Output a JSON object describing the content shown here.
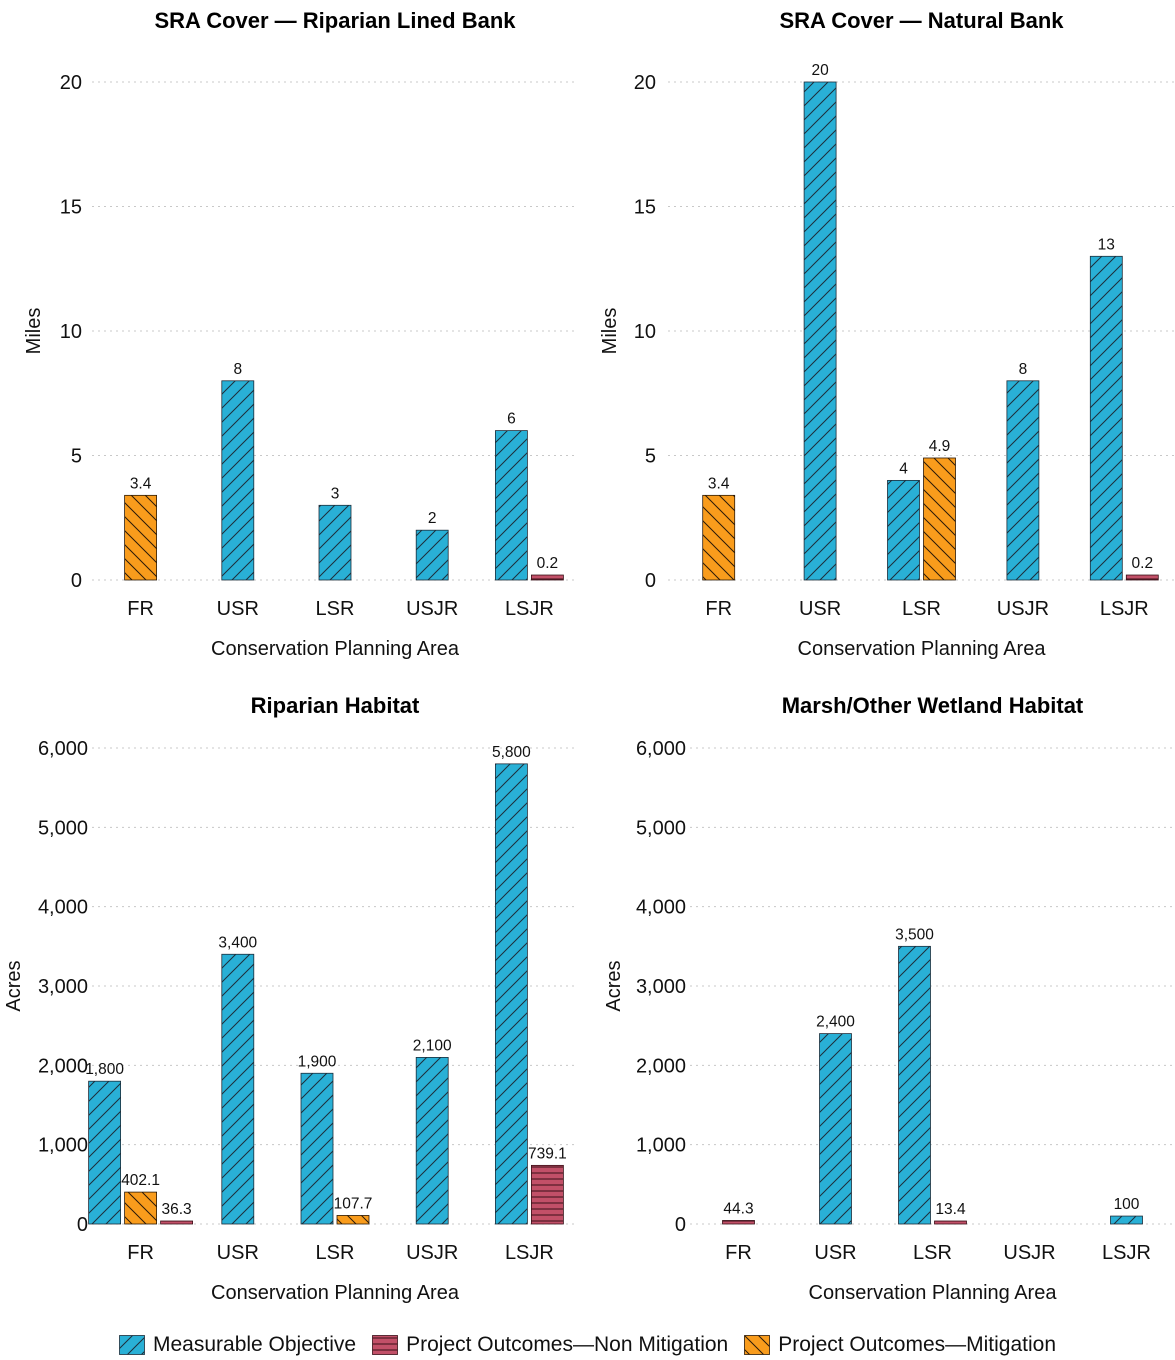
{
  "legend": {
    "objective": "Measurable Objective",
    "non_mitigation": "Project Outcomes—Non Mitigation",
    "mitigation": "Project Outcomes—Mitigation"
  },
  "colors": {
    "objective": "#29b0d6",
    "non_mitigation": "#c25068",
    "mitigation": "#f99c1c",
    "grid": "#c8c8c8"
  },
  "chart_data": [
    {
      "type": "bar",
      "title": "SRA Cover — Riparian Lined Bank",
      "xlabel": "Conservation Planning Area",
      "ylabel": "Miles",
      "ylim": [
        0,
        20
      ],
      "yticks": [
        0,
        5,
        10,
        15,
        20
      ],
      "ytick_labels": [
        "0",
        "5",
        "10",
        "15",
        "20"
      ],
      "categories": [
        "FR",
        "USR",
        "LSR",
        "USJR",
        "LSJR"
      ],
      "series": [
        {
          "name": "Measurable Objective",
          "values": [
            null,
            8,
            3,
            2,
            6
          ],
          "labels": [
            null,
            "8",
            "3",
            "2",
            "6"
          ]
        },
        {
          "name": "Project Outcomes—Mitigation",
          "values": [
            3.4,
            null,
            null,
            null,
            null
          ],
          "labels": [
            "3.4",
            null,
            null,
            null,
            null
          ]
        },
        {
          "name": "Project Outcomes—Non Mitigation",
          "values": [
            null,
            null,
            null,
            null,
            0.2
          ],
          "labels": [
            null,
            null,
            null,
            null,
            "0.2"
          ]
        }
      ]
    },
    {
      "type": "bar",
      "title": "SRA Cover — Natural Bank",
      "xlabel": "Conservation Planning Area",
      "ylabel": "Miles",
      "ylim": [
        0,
        20
      ],
      "yticks": [
        0,
        5,
        10,
        15,
        20
      ],
      "ytick_labels": [
        "0",
        "5",
        "10",
        "15",
        "20"
      ],
      "categories": [
        "FR",
        "USR",
        "LSR",
        "USJR",
        "LSJR"
      ],
      "series": [
        {
          "name": "Measurable Objective",
          "values": [
            null,
            20,
            4,
            8,
            13
          ],
          "labels": [
            null,
            "20",
            "4",
            "8",
            "13"
          ]
        },
        {
          "name": "Project Outcomes—Mitigation",
          "values": [
            3.4,
            null,
            4.9,
            null,
            null
          ],
          "labels": [
            "3.4",
            null,
            "4.9",
            null,
            null
          ]
        },
        {
          "name": "Project Outcomes—Non Mitigation",
          "values": [
            null,
            null,
            null,
            null,
            0.2
          ],
          "labels": [
            null,
            null,
            null,
            null,
            "0.2"
          ]
        }
      ]
    },
    {
      "type": "bar",
      "title": "Riparian Habitat",
      "xlabel": "Conservation Planning Area",
      "ylabel": "Acres",
      "ylim": [
        0,
        6000
      ],
      "yticks": [
        0,
        1000,
        2000,
        3000,
        4000,
        5000,
        6000
      ],
      "ytick_labels": [
        "0",
        "1,000",
        "2,000",
        "3,000",
        "4,000",
        "5,000",
        "6,000"
      ],
      "categories": [
        "FR",
        "USR",
        "LSR",
        "USJR",
        "LSJR"
      ],
      "series": [
        {
          "name": "Measurable Objective",
          "values": [
            1800,
            3400,
            1900,
            2100,
            5800
          ],
          "labels": [
            "1,800",
            "3,400",
            "1,900",
            "2,100",
            "5,800"
          ]
        },
        {
          "name": "Project Outcomes—Mitigation",
          "values": [
            402.1,
            null,
            107.7,
            null,
            null
          ],
          "labels": [
            "402.1",
            null,
            "107.7",
            null,
            null
          ]
        },
        {
          "name": "Project Outcomes—Non Mitigation",
          "values": [
            36.3,
            null,
            null,
            null,
            739.1
          ],
          "labels": [
            "36.3",
            null,
            null,
            null,
            "739.1"
          ]
        }
      ]
    },
    {
      "type": "bar",
      "title": "Marsh/Other Wetland Habitat",
      "xlabel": "Conservation Planning Area",
      "ylabel": "Acres",
      "ylim": [
        0,
        6000
      ],
      "yticks": [
        0,
        1000,
        2000,
        3000,
        4000,
        5000,
        6000
      ],
      "ytick_labels": [
        "0",
        "1,000",
        "2,000",
        "3,000",
        "4,000",
        "5,000",
        "6,000"
      ],
      "categories": [
        "FR",
        "USR",
        "LSR",
        "USJR",
        "LSJR"
      ],
      "series": [
        {
          "name": "Measurable Objective",
          "values": [
            null,
            2400,
            3500,
            null,
            100
          ],
          "labels": [
            null,
            "2,400",
            "3,500",
            null,
            "100"
          ]
        },
        {
          "name": "Project Outcomes—Mitigation",
          "values": [
            null,
            null,
            null,
            null,
            null
          ],
          "labels": [
            null,
            null,
            null,
            null,
            null
          ]
        },
        {
          "name": "Project Outcomes—Non Mitigation",
          "values": [
            44.3,
            null,
            13.4,
            null,
            null
          ],
          "labels": [
            "44.3",
            null,
            "13.4",
            null,
            null
          ]
        }
      ]
    }
  ]
}
